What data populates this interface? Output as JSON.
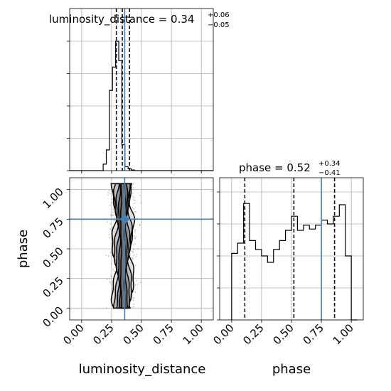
{
  "titles": {
    "panel1_main": "luminosity_distance = 0.34",
    "panel1_sup": "+0.06",
    "panel1_sub": "−0.05",
    "panel2_main": "phase = 0.52",
    "panel2_sup": "+0.34",
    "panel2_sub": "−0.41"
  },
  "xlabels": {
    "corner": "luminosity_distance",
    "phase": "phase"
  },
  "ylabels": {
    "corner": "phase"
  },
  "chart_data": [
    {
      "type": "histogram",
      "panel": "luminosity_distance marginal",
      "title": "luminosity_distance = 0.34 +0.06 −0.05",
      "xlim": [
        -0.1,
        1.1
      ],
      "bin_edges": [
        0.18,
        0.206,
        0.232,
        0.258,
        0.284,
        0.31,
        0.336,
        0.362,
        0.388,
        0.414,
        0.44,
        0.466,
        0.492,
        0.518
      ],
      "counts": [
        0.05,
        0.16,
        0.62,
        0.8,
        1.0,
        0.85,
        0.2,
        0.03,
        0.015,
        0.005,
        0.0,
        0.0,
        0.0
      ],
      "quantiles": [
        0.29,
        0.34,
        0.4
      ],
      "truth": 0.36,
      "grid": true
    },
    {
      "type": "scatter",
      "panel": "luminosity_distance vs phase (2D density with contours)",
      "xlabel": "luminosity_distance",
      "ylabel": "phase",
      "xlim": [
        -0.1,
        1.1
      ],
      "ylim": [
        -0.1,
        1.1
      ],
      "xticks": [
        "0.00",
        "0.25",
        "0.50",
        "0.75",
        "1.00"
      ],
      "yticks": [
        "0.00",
        "0.25",
        "0.50",
        "0.75",
        "1.00"
      ],
      "truth": {
        "x": 0.36,
        "y": 0.75
      },
      "samples_x_range": [
        0.2,
        0.52
      ],
      "samples_y_range": [
        0.0,
        1.05
      ],
      "grid": true
    },
    {
      "type": "histogram",
      "panel": "phase marginal",
      "title": "phase = 0.52 +0.34 −0.41",
      "xlabel": "phase",
      "xlim": [
        -0.1,
        1.1
      ],
      "xticks": [
        "0.00",
        "0.25",
        "0.50",
        "0.75",
        "1.00"
      ],
      "bin_edges": [
        0.0,
        0.05,
        0.1,
        0.15,
        0.2,
        0.25,
        0.3,
        0.35,
        0.4,
        0.45,
        0.5,
        0.55,
        0.6,
        0.65,
        0.7,
        0.75,
        0.8,
        0.85,
        0.9,
        0.95,
        1.0,
        1.05
      ],
      "counts": [
        0.52,
        0.6,
        0.91,
        0.62,
        0.55,
        0.5,
        0.45,
        0.55,
        0.62,
        0.7,
        0.81,
        0.7,
        0.74,
        0.71,
        0.74,
        0.78,
        0.75,
        0.81,
        0.9,
        0.5,
        0.0
      ],
      "ymax": 1.0,
      "quantiles": [
        0.11,
        0.52,
        0.86
      ],
      "truth": 0.75,
      "grid": true
    }
  ],
  "colors": {
    "truth": "#4682b4",
    "hist": "#000000",
    "grid": "#b0b0b0",
    "points": "#555555"
  }
}
